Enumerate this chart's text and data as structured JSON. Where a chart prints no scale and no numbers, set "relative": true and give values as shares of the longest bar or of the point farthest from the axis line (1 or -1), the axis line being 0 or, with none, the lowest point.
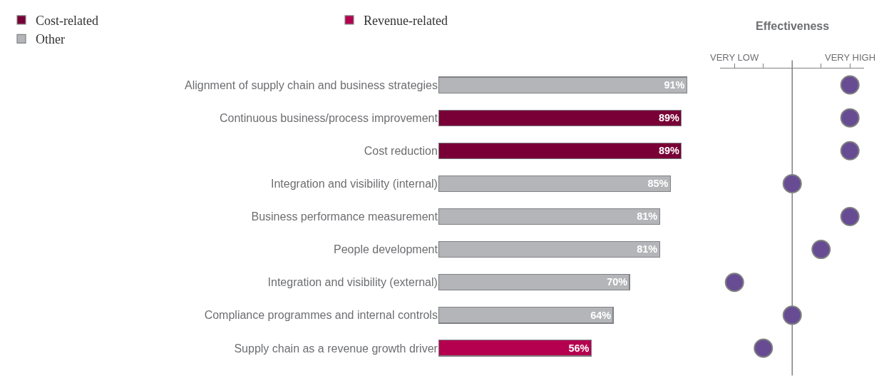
{
  "chart_data": [
    {
      "type": "bar",
      "orientation": "horizontal",
      "stacked": true,
      "legend": "top",
      "tick_labels": "y",
      "categories": [
        "Alignment of supply chain and business strategies",
        "Continuous business/process improvement",
        "Cost reduction",
        "Integration and visibility (internal)",
        "Business performance measurement",
        "People development",
        "Integration and visibility (external)",
        "Compliance programmes and internal controls",
        "Supply chain as a revenue growth driver"
      ],
      "series": [
        {
          "name": "Cost-related",
          "color": "#780036",
          "values": [
            null,
            89,
            89,
            null,
            null,
            null,
            null,
            null,
            null
          ],
          "value_labels": [
            null,
            "89%",
            "89%",
            null,
            null,
            null,
            null,
            null,
            null
          ]
        },
        {
          "name": "Revenue-related",
          "color": "#b5004f",
          "values": [
            null,
            null,
            null,
            null,
            null,
            null,
            null,
            null,
            56
          ],
          "value_labels": [
            null,
            null,
            null,
            null,
            null,
            null,
            null,
            null,
            "56%"
          ]
        },
        {
          "name": "Other",
          "color": "#b3b5b8",
          "values": [
            91,
            null,
            null,
            85,
            81,
            81,
            70,
            64,
            null
          ],
          "value_labels": [
            "91%",
            null,
            null,
            "85%",
            "81%",
            "81%",
            "70%",
            "64%",
            null
          ]
        }
      ]
    },
    {
      "type": "scatter",
      "title": "Effectiveness",
      "orientation": "horizontal",
      "tick_labels": "x",
      "marker": "circle",
      "color": "#674c94",
      "categories": [
        null,
        null,
        null,
        null,
        null,
        null,
        null,
        null,
        null
      ],
      "relative": true,
      "values": [
        1,
        1,
        1,
        0.5,
        1,
        0.75,
        0,
        0.5,
        0.25
      ],
      "annotations": [
        "VERY LOW",
        "VERY HIGH"
      ],
      "ref_lines": [
        {
          "axis": "x",
          "value": 0.5,
          "color": "#808080"
        }
      ]
    }
  ]
}
